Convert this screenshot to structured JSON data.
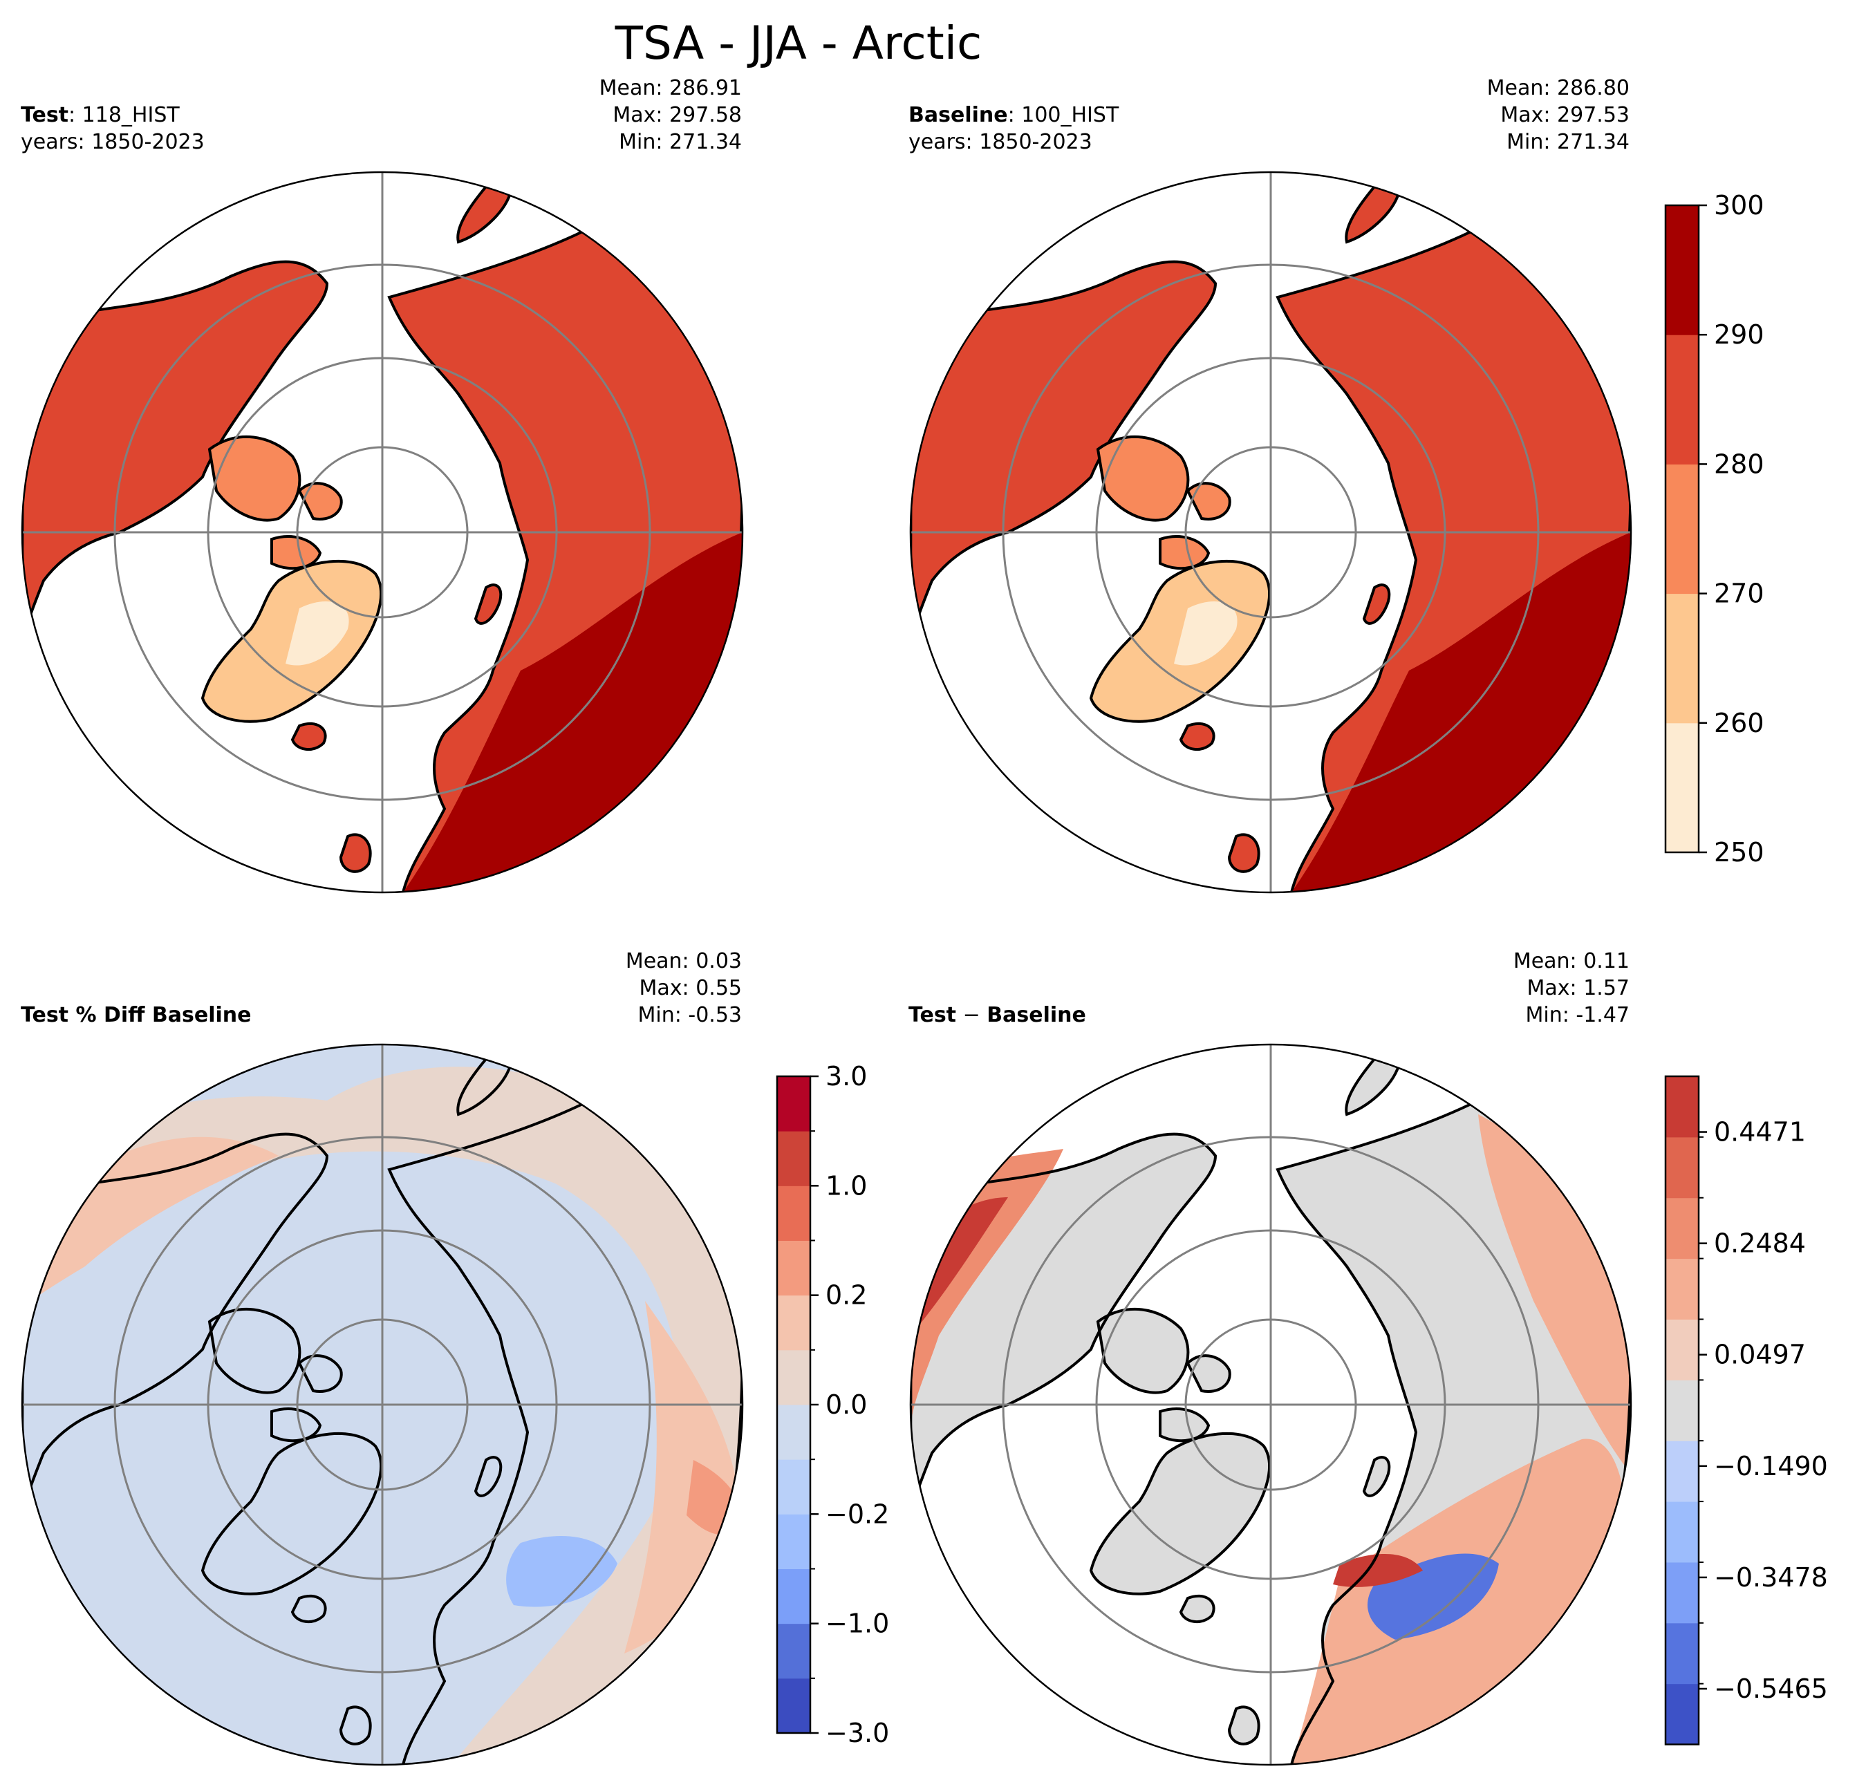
{
  "figure": {
    "title": "TSA - JJA - Arctic"
  },
  "panels": {
    "test": {
      "label_bold": "Test",
      "label_rest": ": 118_HIST",
      "years": "years: 1850-2023",
      "mean": "Mean: 286.91",
      "max": "Max: 297.58",
      "min": "Min: 271.34"
    },
    "baseline": {
      "label_bold": "Baseline",
      "label_rest": ": 100_HIST",
      "years": "years: 1850-2023",
      "mean": "Mean: 286.80",
      "max": "Max: 297.53",
      "min": "Min: 271.34"
    },
    "pctdiff": {
      "label_bold": "Test % Diff Baseline",
      "mean": "Mean:  0.03",
      "max": "Max:  0.55",
      "min": "Min: -0.53"
    },
    "diff": {
      "label_bold": "Test",
      "label_rest": " − ",
      "label_bold2": "Baseline",
      "mean": "Mean:  0.11",
      "max": "Max:  1.57",
      "min": "Min: -1.47"
    }
  },
  "colorbars": {
    "top": {
      "ticks": [
        "300",
        "290",
        "280",
        "270",
        "260",
        "250"
      ],
      "colors": [
        "#fdebd2",
        "#fdc78f",
        "#f8895a",
        "#de4630",
        "#a50000"
      ]
    },
    "pct": {
      "ticks": [
        "3.0",
        "1.0",
        "0.2",
        "0.0",
        "−0.2",
        "−1.0",
        "−3.0"
      ],
      "colors": [
        "#3b4cc0",
        "#5470d8",
        "#7b9ff9",
        "#9ebefd",
        "#b9d0f9",
        "#cfdbee",
        "#e8d6cc",
        "#f4c4ae",
        "#f39b7f",
        "#e86d55",
        "#cd4438",
        "#b40426"
      ]
    },
    "diff": {
      "ticks": [
        "0.4471",
        "0.2484",
        "0.0497",
        "−0.1490",
        "−0.3478",
        "−0.5465"
      ],
      "colors": [
        "#3d52c7",
        "#5674df",
        "#7d9ff7",
        "#9cbcfc",
        "#bccffa",
        "#dcdcdc",
        "#f1cdbd",
        "#f4ae93",
        "#ee8d70",
        "#e0664f",
        "#c83b34"
      ]
    }
  },
  "chart_data": [
    {
      "type": "heatmap",
      "title": "Test: 118_HIST",
      "map": "north polar stereographic",
      "levels": [
        250,
        260,
        270,
        280,
        290,
        300
      ],
      "stats": {
        "mean": 286.91,
        "max": 297.58,
        "min": 271.34
      }
    },
    {
      "type": "heatmap",
      "title": "Baseline: 100_HIST",
      "map": "north polar stereographic",
      "levels": [
        250,
        260,
        270,
        280,
        290,
        300
      ],
      "stats": {
        "mean": 286.8,
        "max": 297.53,
        "min": 271.34
      }
    },
    {
      "type": "heatmap",
      "title": "Test % Diff Baseline",
      "map": "north polar stereographic",
      "levels": [
        -3.0,
        -1.0,
        -0.2,
        0.0,
        0.2,
        1.0,
        3.0
      ],
      "stats": {
        "mean": 0.03,
        "max": 0.55,
        "min": -0.53
      }
    },
    {
      "type": "heatmap",
      "title": "Test − Baseline",
      "map": "north polar stereographic",
      "levels": [
        -0.5465,
        -0.3478,
        -0.149,
        0.0497,
        0.2484,
        0.4471
      ],
      "stats": {
        "mean": 0.11,
        "max": 1.57,
        "min": -1.47
      }
    }
  ]
}
